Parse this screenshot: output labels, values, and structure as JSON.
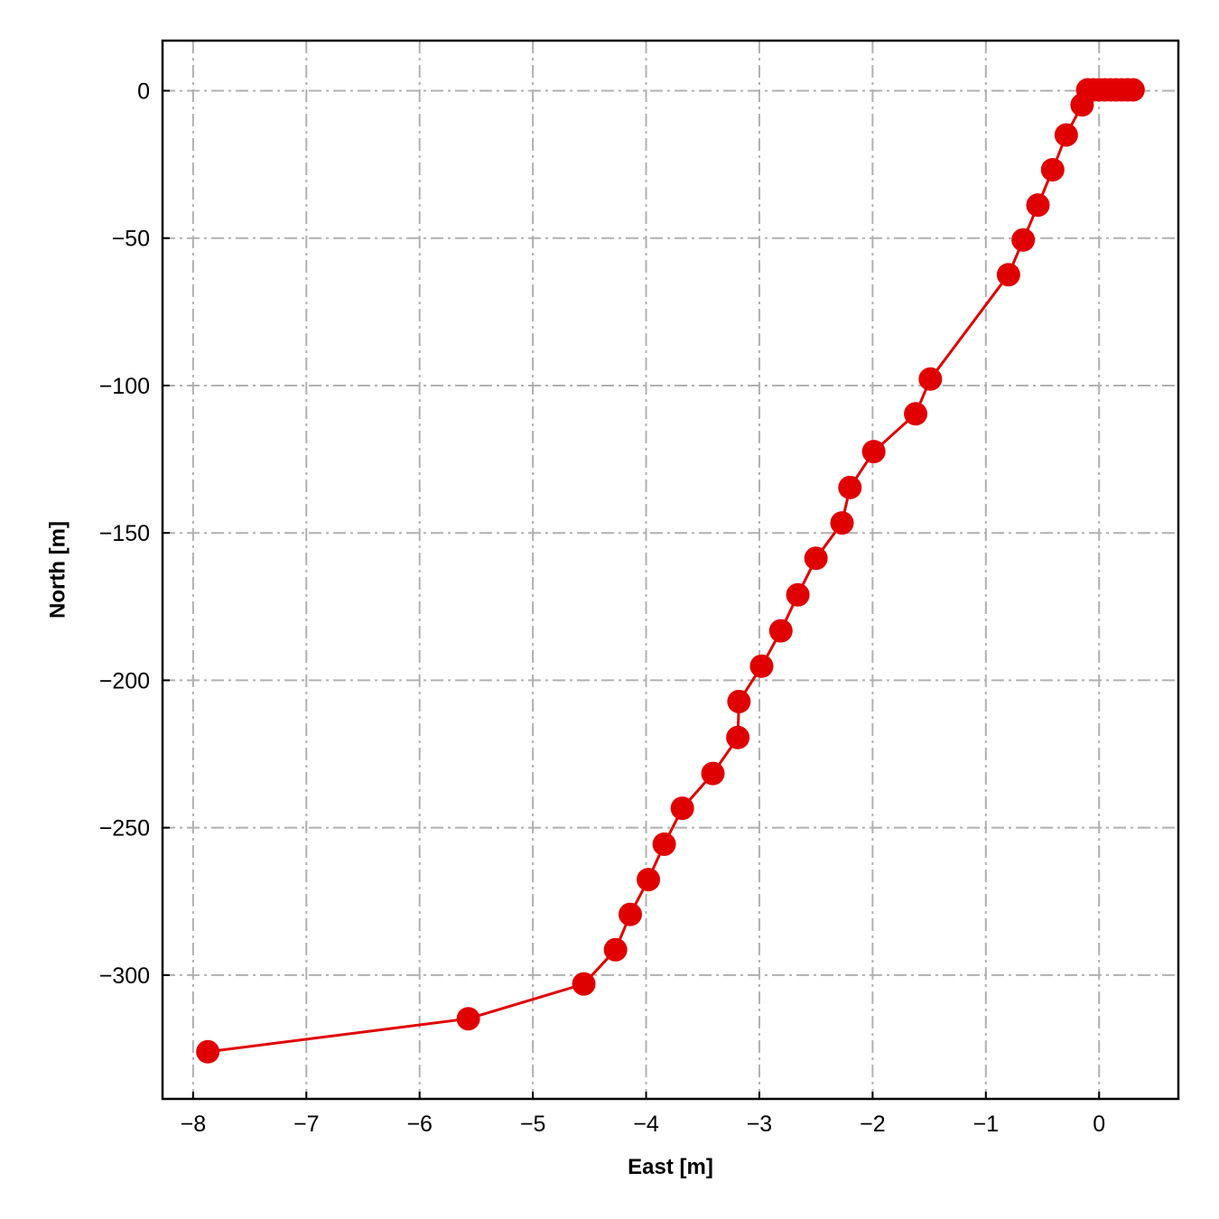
{
  "chart_data": {
    "type": "line",
    "title": "",
    "xlabel": "East [m]",
    "ylabel": "North [m]",
    "xlim": [
      -8.27,
      0.7
    ],
    "ylim": [
      -342,
      17
    ],
    "xticks": [
      -8,
      -7,
      -6,
      -5,
      -4,
      -3,
      -2,
      -1,
      0
    ],
    "yticks": [
      0,
      -50,
      -100,
      -150,
      -200,
      -250,
      -300
    ],
    "xtick_labels": [
      "−8",
      "−7",
      "−6",
      "−5",
      "−4",
      "−3",
      "−2",
      "−1",
      "0"
    ],
    "ytick_labels": [
      "0",
      "−50",
      "−100",
      "−150",
      "−200",
      "−250",
      "−300"
    ],
    "grid": true,
    "colors": {
      "series": "#e00000",
      "grid": "#b0b0b0",
      "frame": "#000000"
    },
    "series": [
      {
        "marker": "circle",
        "points": [
          [
            0.3,
            0.3
          ],
          [
            0.25,
            0.3
          ],
          [
            0.2,
            0.3
          ],
          [
            0.15,
            0.3
          ],
          [
            0.1,
            0.3
          ],
          [
            0.05,
            0.3
          ],
          [
            0.0,
            0.3
          ],
          [
            -0.05,
            0.3
          ],
          [
            -0.1,
            0.3
          ],
          [
            -0.15,
            -4.8
          ],
          [
            -0.29,
            -15
          ],
          [
            -0.41,
            -26.8
          ],
          [
            -0.54,
            -38.8
          ],
          [
            -0.67,
            -50.6
          ],
          [
            -0.8,
            -62.4
          ],
          [
            -1.49,
            -97.8
          ],
          [
            -1.62,
            -109.6
          ],
          [
            -1.99,
            -122.4
          ],
          [
            -2.2,
            -134.6
          ],
          [
            -2.27,
            -146.6
          ],
          [
            -2.5,
            -158.6
          ],
          [
            -2.66,
            -171
          ],
          [
            -2.81,
            -183.2
          ],
          [
            -2.98,
            -195.2
          ],
          [
            -3.18,
            -207.2
          ],
          [
            -3.19,
            -219.4
          ],
          [
            -3.41,
            -231.6
          ],
          [
            -3.68,
            -243.4
          ],
          [
            -3.84,
            -255.6
          ],
          [
            -3.98,
            -267.6
          ],
          [
            -4.14,
            -279.4
          ],
          [
            -4.27,
            -291.4
          ],
          [
            -4.55,
            -303
          ],
          [
            -5.57,
            -314.8
          ],
          [
            -7.87,
            -326
          ]
        ]
      }
    ]
  }
}
